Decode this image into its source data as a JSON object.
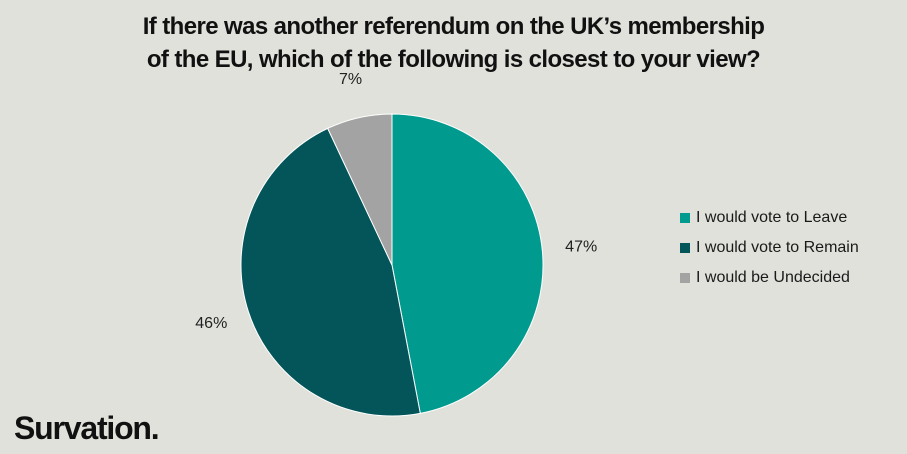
{
  "chart_data": {
    "type": "pie",
    "title_lines": [
      "If there was another referendum on the UK’s membership",
      "of the EU, which of the following is closest to your view?"
    ],
    "slices": [
      {
        "name": "I would vote to Leave",
        "value": 47,
        "label": "47%",
        "color": "#009a8e"
      },
      {
        "name": "I would vote to Remain",
        "value": 46,
        "label": "46%",
        "color": "#03555a"
      },
      {
        "name": "I would be Undecided",
        "value": 7,
        "label": "7%",
        "color": "#a3a3a3"
      }
    ],
    "start_angle": "12 o'clock",
    "direction": "clockwise",
    "legend_position": "right"
  },
  "brand": "Survation."
}
